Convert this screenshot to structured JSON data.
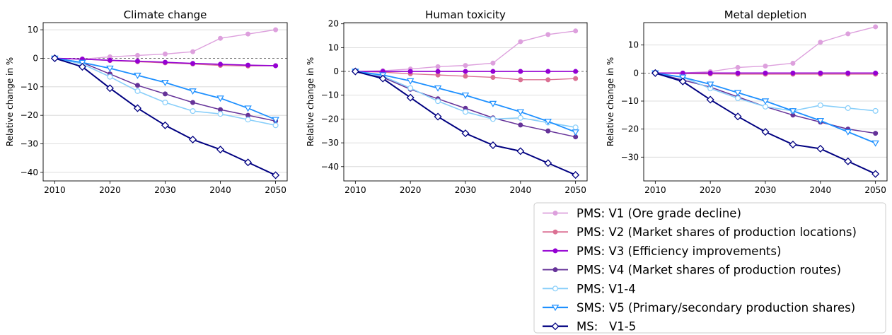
{
  "chart_data": [
    {
      "type": "line",
      "title": "Climate change",
      "xlabel": "",
      "ylabel": "Relative change in %",
      "x": [
        2010,
        2015,
        2020,
        2025,
        2030,
        2035,
        2040,
        2045,
        2050
      ],
      "xticks": [
        "2010",
        "2020",
        "2030",
        "2040",
        "2050"
      ],
      "yticks": [
        "10",
        "0",
        "−10",
        "−20",
        "−30",
        "−40"
      ],
      "ylim": [
        -43,
        12.5
      ],
      "grid": "horizontal",
      "series": [
        {
          "name": "PMS: V1 (Ore grade decline)",
          "values": [
            0,
            -0.3,
            0.5,
            1.0,
            1.5,
            2.3,
            7.0,
            8.5,
            10.0
          ]
        },
        {
          "name": "PMS: V2 (Market shares of production locations)",
          "values": [
            0,
            -0.3,
            -0.8,
            -1.2,
            -1.6,
            -2.0,
            -2.5,
            -2.7,
            -2.6
          ]
        },
        {
          "name": "PMS: V3 (Efficiency improvements)",
          "values": [
            0,
            -0.3,
            -0.7,
            -1.0,
            -1.4,
            -1.8,
            -2.1,
            -2.4,
            -2.6
          ]
        },
        {
          "name": "PMS: V4 (Market shares of production routes)",
          "values": [
            0,
            -1.5,
            -5.5,
            -9.5,
            -12.5,
            -15.5,
            -18.0,
            -20.0,
            -22.0
          ]
        },
        {
          "name": "PMS: V1-4",
          "values": [
            0,
            -2.0,
            -6.5,
            -11.5,
            -15.5,
            -18.5,
            -19.5,
            -21.5,
            -23.5
          ]
        },
        {
          "name": "SMS: V5 (Primary/secondary production shares)",
          "values": [
            0,
            -1.5,
            -3.5,
            -6.0,
            -8.5,
            -11.5,
            -14.0,
            -17.5,
            -21.5
          ]
        },
        {
          "name": "MS:   V1-5",
          "values": [
            0,
            -3.0,
            -10.5,
            -17.5,
            -23.5,
            -28.5,
            -32.0,
            -36.5,
            -41.0
          ]
        }
      ]
    },
    {
      "type": "line",
      "title": "Human toxicity",
      "xlabel": "",
      "ylabel": "Relative change in %",
      "x": [
        2010,
        2015,
        2020,
        2025,
        2030,
        2035,
        2040,
        2045,
        2050
      ],
      "xticks": [
        "2010",
        "2020",
        "2030",
        "2040",
        "2050"
      ],
      "yticks": [
        "20",
        "10",
        "0",
        "−10",
        "−20",
        "−30",
        "−40"
      ],
      "ylim": [
        -46,
        20.5
      ],
      "grid": "horizontal",
      "series": [
        {
          "name": "PMS: V1 (Ore grade decline)",
          "values": [
            0,
            0.3,
            1.0,
            2.0,
            2.5,
            3.5,
            12.5,
            15.5,
            17.0
          ]
        },
        {
          "name": "PMS: V2 (Market shares of production locations)",
          "values": [
            0,
            -0.3,
            -1.0,
            -1.5,
            -2.0,
            -2.5,
            -3.5,
            -3.5,
            -3.0
          ]
        },
        {
          "name": "PMS: V3 (Efficiency improvements)",
          "values": [
            0,
            0,
            0,
            0,
            0,
            0,
            0,
            0,
            0
          ]
        },
        {
          "name": "PMS: V4 (Market shares of production routes)",
          "values": [
            0,
            -2.5,
            -7.5,
            -11.5,
            -15.5,
            -19.5,
            -22.5,
            -25.0,
            -27.5
          ]
        },
        {
          "name": "PMS: V1-4",
          "values": [
            0,
            -2.0,
            -7.0,
            -12.5,
            -17.0,
            -20.0,
            -19.5,
            -21.5,
            -23.5
          ]
        },
        {
          "name": "SMS: V5 (Primary/secondary production shares)",
          "values": [
            0,
            -1.5,
            -4.0,
            -7.0,
            -10.0,
            -13.5,
            -17.0,
            -21.0,
            -25.5
          ]
        },
        {
          "name": "MS:   V1-5",
          "values": [
            0,
            -3.0,
            -11.0,
            -19.0,
            -26.0,
            -31.0,
            -33.5,
            -38.5,
            -43.5
          ]
        }
      ]
    },
    {
      "type": "line",
      "title": "Metal depletion",
      "xlabel": "",
      "ylabel": "Relative change in %",
      "x": [
        2010,
        2015,
        2020,
        2025,
        2030,
        2035,
        2040,
        2045,
        2050
      ],
      "xticks": [
        "2010",
        "2020",
        "2030",
        "2040",
        "2050"
      ],
      "yticks": [
        "10",
        "0",
        "−10",
        "−20",
        "−30"
      ],
      "ylim": [
        -38.5,
        18
      ],
      "grid": "horizontal",
      "series": [
        {
          "name": "PMS: V1 (Ore grade decline)",
          "values": [
            0,
            0,
            0.5,
            2.0,
            2.5,
            3.5,
            11.0,
            14.0,
            16.5
          ]
        },
        {
          "name": "PMS: V2 (Market shares of production locations)",
          "values": [
            0,
            -0.2,
            -0.3,
            -0.4,
            -0.4,
            -0.4,
            -0.4,
            -0.4,
            -0.4
          ]
        },
        {
          "name": "PMS: V3 (Efficiency improvements)",
          "values": [
            0,
            0,
            0,
            0,
            0,
            0,
            0,
            0,
            0
          ]
        },
        {
          "name": "PMS: V4 (Market shares of production routes)",
          "values": [
            0,
            -2.5,
            -5.0,
            -8.5,
            -12.0,
            -15.0,
            -17.5,
            -20.0,
            -21.5
          ]
        },
        {
          "name": "PMS: V1-4",
          "values": [
            0,
            -1.5,
            -5.5,
            -9.0,
            -12.0,
            -13.5,
            -11.5,
            -12.5,
            -13.5
          ]
        },
        {
          "name": "SMS: V5 (Primary/secondary production shares)",
          "values": [
            0,
            -1.5,
            -4.0,
            -7.0,
            -10.0,
            -13.5,
            -17.0,
            -21.0,
            -25.0
          ]
        },
        {
          "name": "MS:   V1-5",
          "values": [
            0,
            -3.0,
            -9.5,
            -15.5,
            -21.0,
            -25.5,
            -27.0,
            -31.5,
            -36.0
          ]
        }
      ]
    }
  ],
  "legend": {
    "placement": "bottom-right",
    "entries": [
      {
        "label": "PMS: V1 (Ore grade decline)",
        "color": "#dda0dd",
        "marker": "dot"
      },
      {
        "label": "PMS: V2 (Market shares of production locations)",
        "color": "#db7093",
        "marker": "dot"
      },
      {
        "label": "PMS: V3 (Efficiency improvements)",
        "color": "#9400d3",
        "marker": "dot"
      },
      {
        "label": "PMS: V4 (Market shares of production routes)",
        "color": "#663399",
        "marker": "dot"
      },
      {
        "label": "PMS: V1-4",
        "color": "#87cefa",
        "marker": "circle-open"
      },
      {
        "label": "SMS: V5 (Primary/secondary production shares)",
        "color": "#1e90ff",
        "marker": "triangle-down-open"
      },
      {
        "label": "MS:   V1-5",
        "color": "#000080",
        "marker": "diamond-open"
      }
    ]
  }
}
